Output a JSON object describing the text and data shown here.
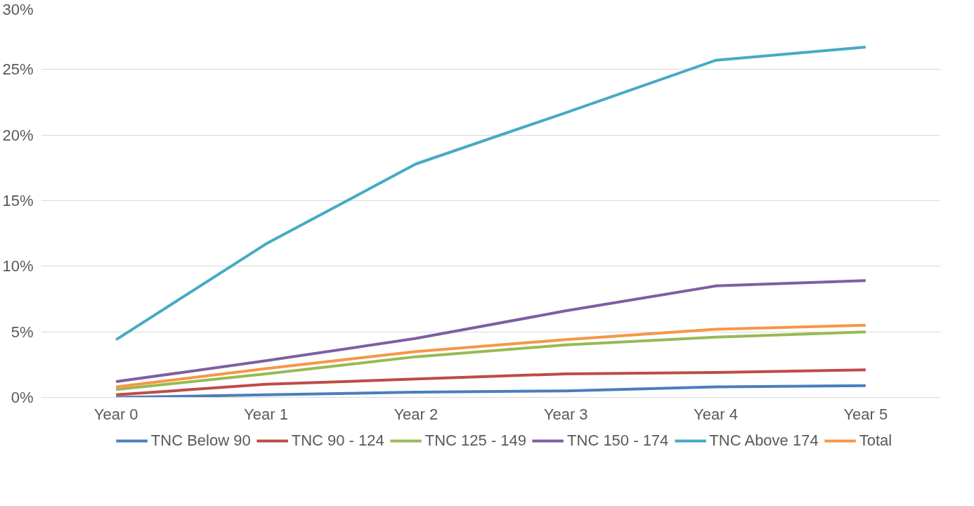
{
  "chart_data": {
    "type": "line",
    "categories": [
      "Year 0",
      "Year 1",
      "Year 2",
      "Year 3",
      "Year 4",
      "Year 5"
    ],
    "ylim": [
      0,
      30
    ],
    "yticks": [
      {
        "value": 0,
        "label": "0%"
      },
      {
        "value": 5,
        "label": "5%"
      },
      {
        "value": 10,
        "label": "10%"
      },
      {
        "value": 15,
        "label": "15%"
      },
      {
        "value": 20,
        "label": "20%"
      },
      {
        "value": 25,
        "label": "25%"
      },
      {
        "value": 30,
        "label": "30%"
      }
    ],
    "grid": "y",
    "legend": "bottom",
    "marker": "none",
    "line_style": "solid",
    "series": [
      {
        "name": "TNC Below 90",
        "color": "#4a7ebb",
        "values": [
          0.0,
          0.2,
          0.4,
          0.5,
          0.8,
          0.9
        ]
      },
      {
        "name": "TNC 90 - 124",
        "color": "#be4b48",
        "values": [
          0.2,
          1.0,
          1.4,
          1.8,
          1.9,
          2.1
        ]
      },
      {
        "name": "TNC 125 - 149",
        "color": "#98b954",
        "values": [
          0.6,
          1.8,
          3.1,
          4.0,
          4.6,
          5.0
        ]
      },
      {
        "name": "TNC 150 - 174",
        "color": "#7d60a0",
        "values": [
          1.2,
          2.8,
          4.5,
          6.6,
          8.5,
          8.9
        ]
      },
      {
        "name": "TNC Above 174",
        "color": "#46aac5",
        "values": [
          4.4,
          11.7,
          17.8,
          21.7,
          25.7,
          26.7
        ]
      },
      {
        "name": "Total",
        "color": "#f79646",
        "values": [
          0.8,
          2.2,
          3.5,
          4.4,
          5.2,
          5.5
        ]
      }
    ]
  }
}
